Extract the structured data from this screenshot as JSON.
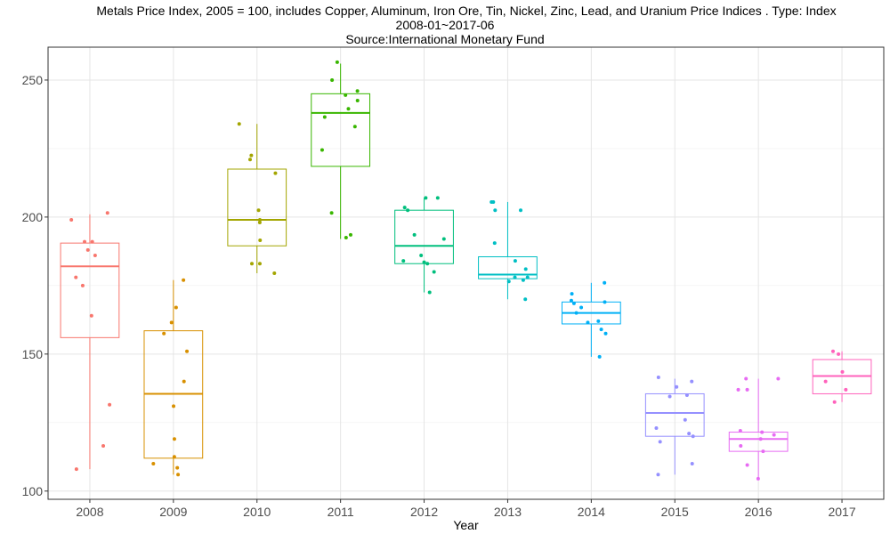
{
  "chart_data": {
    "type": "box",
    "title": "Metals Price Index, 2005 = 100, includes Copper, Aluminum, Iron Ore, Tin, Nickel, Zinc, Lead, and Uranium Price Indices . Type: Index",
    "subtitle": "2008-01~2017-06",
    "source": "Source:International Monetary Fund",
    "xlabel": "Year",
    "ylabel": "",
    "ylim": [
      97,
      262
    ],
    "yticks": [
      100,
      150,
      200,
      250
    ],
    "grid": true,
    "legend": "none",
    "categories": [
      "2008",
      "2009",
      "2010",
      "2011",
      "2012",
      "2013",
      "2014",
      "2015",
      "2016",
      "2017"
    ],
    "colors": [
      "#F8766D",
      "#D89000",
      "#A3A500",
      "#39B600",
      "#00BF7D",
      "#00BFC4",
      "#00B0F6",
      "#9590FF",
      "#E76BF3",
      "#FF62BC"
    ],
    "boxes": [
      {
        "year": "2008",
        "whisker_low": 108,
        "q1": 156,
        "median": 182,
        "q3": 190.5,
        "whisker_high": 201
      },
      {
        "year": "2009",
        "whisker_low": 106,
        "q1": 112,
        "median": 135.5,
        "q3": 158.5,
        "whisker_high": 177
      },
      {
        "year": "2010",
        "whisker_low": 179.5,
        "q1": 189.5,
        "median": 199,
        "q3": 217.5,
        "whisker_high": 234
      },
      {
        "year": "2011",
        "whisker_low": 192,
        "q1": 218.5,
        "median": 238,
        "q3": 245,
        "whisker_high": 256
      },
      {
        "year": "2012",
        "whisker_low": 172.5,
        "q1": 183,
        "median": 189.5,
        "q3": 202.5,
        "whisker_high": 207
      },
      {
        "year": "2013",
        "whisker_low": 170,
        "q1": 177.5,
        "median": 179,
        "q3": 185.5,
        "whisker_high": 205.5
      },
      {
        "year": "2014",
        "whisker_low": 149,
        "q1": 161,
        "median": 165,
        "q3": 169,
        "whisker_high": 176
      },
      {
        "year": "2015",
        "whisker_low": 106,
        "q1": 120,
        "median": 128.5,
        "q3": 135.5,
        "whisker_high": 141
      },
      {
        "year": "2016",
        "whisker_low": 104.5,
        "q1": 114.5,
        "median": 119,
        "q3": 121.5,
        "whisker_high": 141
      },
      {
        "year": "2017",
        "whisker_low": 132.5,
        "q1": 135.5,
        "median": 142,
        "q3": 148,
        "whisker_high": 151
      }
    ],
    "points": [
      {
        "year": "2008",
        "values": [
          201.5,
          199,
          191,
          191,
          188,
          186,
          178,
          175,
          164,
          131.5,
          116.5,
          108
        ]
      },
      {
        "year": "2009",
        "values": [
          177,
          167,
          161.5,
          157.5,
          151,
          140,
          131,
          119,
          112.5,
          110,
          108.5,
          106
        ]
      },
      {
        "year": "2010",
        "values": [
          234,
          222.5,
          221,
          216,
          202.5,
          199,
          198,
          191.5,
          183,
          183,
          179.5
        ]
      },
      {
        "year": "2011",
        "values": [
          256.5,
          250,
          246,
          244.5,
          242.5,
          239.5,
          236.5,
          233,
          224.5,
          201.5,
          193.5,
          192.5
        ]
      },
      {
        "year": "2012",
        "values": [
          207,
          207,
          203.5,
          202.5,
          193.5,
          192,
          186,
          184,
          183.5,
          183,
          180,
          172.5
        ]
      },
      {
        "year": "2013",
        "values": [
          205.5,
          205.5,
          202.5,
          202.5,
          190.5,
          184,
          181,
          178,
          178,
          177,
          176.5,
          170
        ]
      },
      {
        "year": "2014",
        "values": [
          176,
          172,
          169.5,
          169,
          168.5,
          167,
          165,
          162,
          161.5,
          159,
          157.5,
          149
        ]
      },
      {
        "year": "2015",
        "values": [
          141.5,
          140,
          138,
          135,
          134.5,
          126,
          123,
          121,
          120,
          118,
          110,
          106
        ]
      },
      {
        "year": "2016",
        "values": [
          141,
          141,
          137,
          137,
          122,
          121.5,
          120.5,
          119,
          116.5,
          114.5,
          109.5,
          104.5
        ]
      },
      {
        "year": "2017",
        "values": [
          151,
          150,
          143.5,
          140,
          137,
          132.5
        ]
      }
    ]
  }
}
